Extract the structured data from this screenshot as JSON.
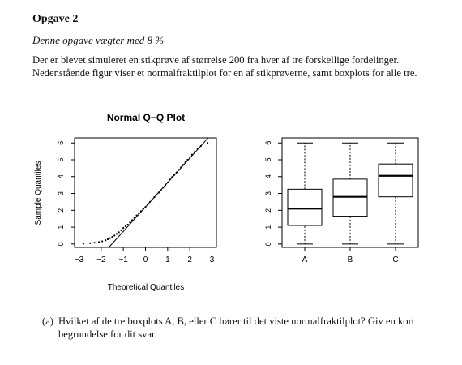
{
  "exercise": {
    "heading": "Opgave 2",
    "weight_note": "Denne opgave vægter med 8 %",
    "intro": "Der er blevet simuleret en stikprøve af størrelse 200 fra hver af tre forskellige fordelinger. Nedenstående figur viser et normalfraktilplot for en af stikprøverne, samt boxplots for alle tre."
  },
  "question": {
    "label": "(a)",
    "text": "Hvilket af de tre boxplots A, B, eller C hører til det viste normalfraktilplot? Giv en kort begrundelse for dit svar."
  },
  "chart_data": [
    {
      "type": "scatter",
      "title": "Normal Q−Q Plot",
      "xlabel": "Theoretical Quantiles",
      "ylabel": "Sample Quantiles",
      "xlim": [
        -3.2,
        3.2
      ],
      "ylim": [
        -0.2,
        6.3
      ],
      "xticks": [
        -3,
        -2,
        -1,
        0,
        1,
        2,
        3
      ],
      "yticks": [
        0,
        1,
        2,
        3,
        4,
        5,
        6
      ],
      "xtick_labels": [
        "−3",
        "−2",
        "−1",
        "0",
        "1",
        "2",
        "3"
      ],
      "ytick_labels": [
        "0",
        "1",
        "2",
        "3",
        "4",
        "5",
        "6"
      ],
      "reference_line": {
        "intercept": 2.2,
        "slope": 1.45
      },
      "points": [
        [
          -2.8,
          0.02
        ],
        [
          -2.5,
          0.05
        ],
        [
          -2.3,
          0.08
        ],
        [
          -2.1,
          0.12
        ],
        [
          -1.95,
          0.16
        ],
        [
          -1.8,
          0.22
        ],
        [
          -1.7,
          0.28
        ],
        [
          -1.6,
          0.35
        ],
        [
          -1.5,
          0.42
        ],
        [
          -1.4,
          0.5
        ],
        [
          -1.3,
          0.6
        ],
        [
          -1.2,
          0.7
        ],
        [
          -1.1,
          0.82
        ],
        [
          -1.0,
          0.95
        ],
        [
          -0.9,
          1.05
        ],
        [
          -0.8,
          1.15
        ],
        [
          -0.7,
          1.28
        ],
        [
          -0.6,
          1.42
        ],
        [
          -0.5,
          1.55
        ],
        [
          -0.4,
          1.7
        ],
        [
          -0.3,
          1.82
        ],
        [
          -0.2,
          1.95
        ],
        [
          -0.1,
          2.08
        ],
        [
          0.0,
          2.2
        ],
        [
          0.1,
          2.35
        ],
        [
          0.2,
          2.5
        ],
        [
          0.3,
          2.63
        ],
        [
          0.4,
          2.78
        ],
        [
          0.5,
          2.92
        ],
        [
          0.6,
          3.05
        ],
        [
          0.7,
          3.2
        ],
        [
          0.8,
          3.35
        ],
        [
          0.9,
          3.5
        ],
        [
          1.0,
          3.65
        ],
        [
          1.1,
          3.82
        ],
        [
          1.2,
          3.98
        ],
        [
          1.3,
          4.1
        ],
        [
          1.4,
          4.25
        ],
        [
          1.5,
          4.4
        ],
        [
          1.6,
          4.55
        ],
        [
          1.7,
          4.7
        ],
        [
          1.8,
          4.85
        ],
        [
          1.9,
          5.0
        ],
        [
          2.0,
          5.15
        ],
        [
          2.1,
          5.3
        ],
        [
          2.2,
          5.45
        ],
        [
          2.35,
          5.65
        ],
        [
          2.5,
          5.82
        ],
        [
          2.8,
          6.0
        ]
      ]
    },
    {
      "type": "box",
      "categories": [
        "A",
        "B",
        "C"
      ],
      "ylim": [
        -0.2,
        6.3
      ],
      "yticks": [
        0,
        1,
        2,
        3,
        4,
        5,
        6
      ],
      "ytick_labels": [
        "0",
        "1",
        "2",
        "3",
        "4",
        "5",
        "6"
      ],
      "boxes": [
        {
          "label": "A",
          "min": 0.0,
          "q1": 1.1,
          "median": 2.1,
          "q3": 3.25,
          "max": 6.0
        },
        {
          "label": "B",
          "min": 0.0,
          "q1": 1.65,
          "median": 2.8,
          "q3": 3.85,
          "max": 6.0
        },
        {
          "label": "C",
          "min": 0.0,
          "q1": 2.8,
          "median": 4.05,
          "q3": 4.75,
          "max": 6.0
        }
      ]
    }
  ]
}
